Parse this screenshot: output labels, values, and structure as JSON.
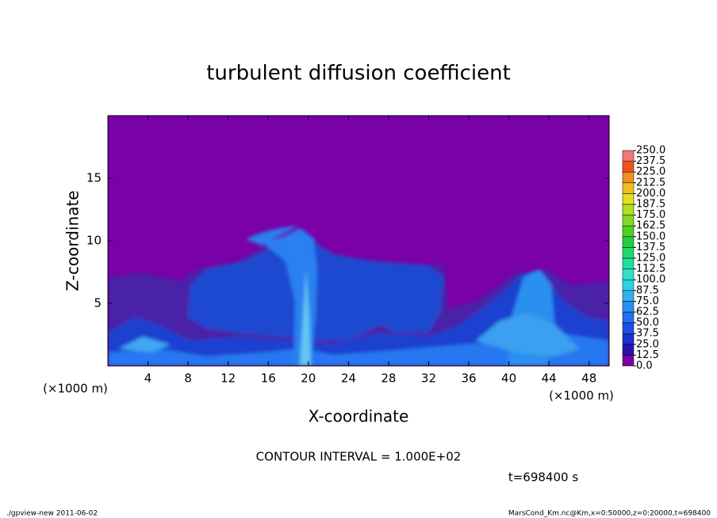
{
  "chart_data": {
    "type": "heatmap",
    "title": "turbulent diffusion coefficient",
    "xlabel": "X-coordinate",
    "ylabel": "Z-coordinate",
    "x_unit": "(×1000 m)",
    "y_unit": "(×1000 m)",
    "xlim": [
      0,
      50
    ],
    "xticks": [
      4,
      8,
      12,
      16,
      20,
      24,
      28,
      32,
      36,
      40,
      44,
      48
    ],
    "ylim": [
      0,
      20
    ],
    "yticks": [
      5,
      10,
      15
    ],
    "colorbar": {
      "levels": [
        {
          "value": 0,
          "label": "0.0"
        },
        12.5,
        {
          "value": 25,
          "label": "25.0"
        },
        37.5,
        {
          "value": 50,
          "label": "50.0"
        },
        62.5,
        {
          "value": 75,
          "label": "75.0"
        },
        87.5,
        {
          "value": 100,
          "label": "100.0"
        },
        112.5,
        {
          "value": 125,
          "label": "125.0"
        },
        137.5,
        {
          "value": 150,
          "label": "150.0"
        },
        162.5,
        {
          "value": 175,
          "label": "175.0"
        },
        187.5,
        {
          "value": 200,
          "label": "200.0"
        },
        212.5,
        {
          "value": 225,
          "label": "225.0"
        },
        237.5,
        {
          "value": 250,
          "label": "250.0"
        }
      ],
      "colors": [
        "#7a00a8",
        "#2a10b0",
        "#1a30d0",
        "#1a50e8",
        "#2070f0",
        "#2890f0",
        "#30b0f0",
        "#30d0e8",
        "#30e0c8",
        "#20e0a0",
        "#20d870",
        "#20d040",
        "#50d020",
        "#80d820",
        "#b0e020",
        "#e0e020",
        "#f0c020",
        "#f09020",
        "#f05020",
        "#f07878"
      ]
    },
    "contour_interval": "CONTOUR INTERVAL = 1.000E+02",
    "time": "t=698400 s",
    "footer_left": "./gpview-new  2011-06-02",
    "footer_right": "MarsCond_Km.nc@Km,x=0:50000,z=0:20000,t=698400"
  }
}
